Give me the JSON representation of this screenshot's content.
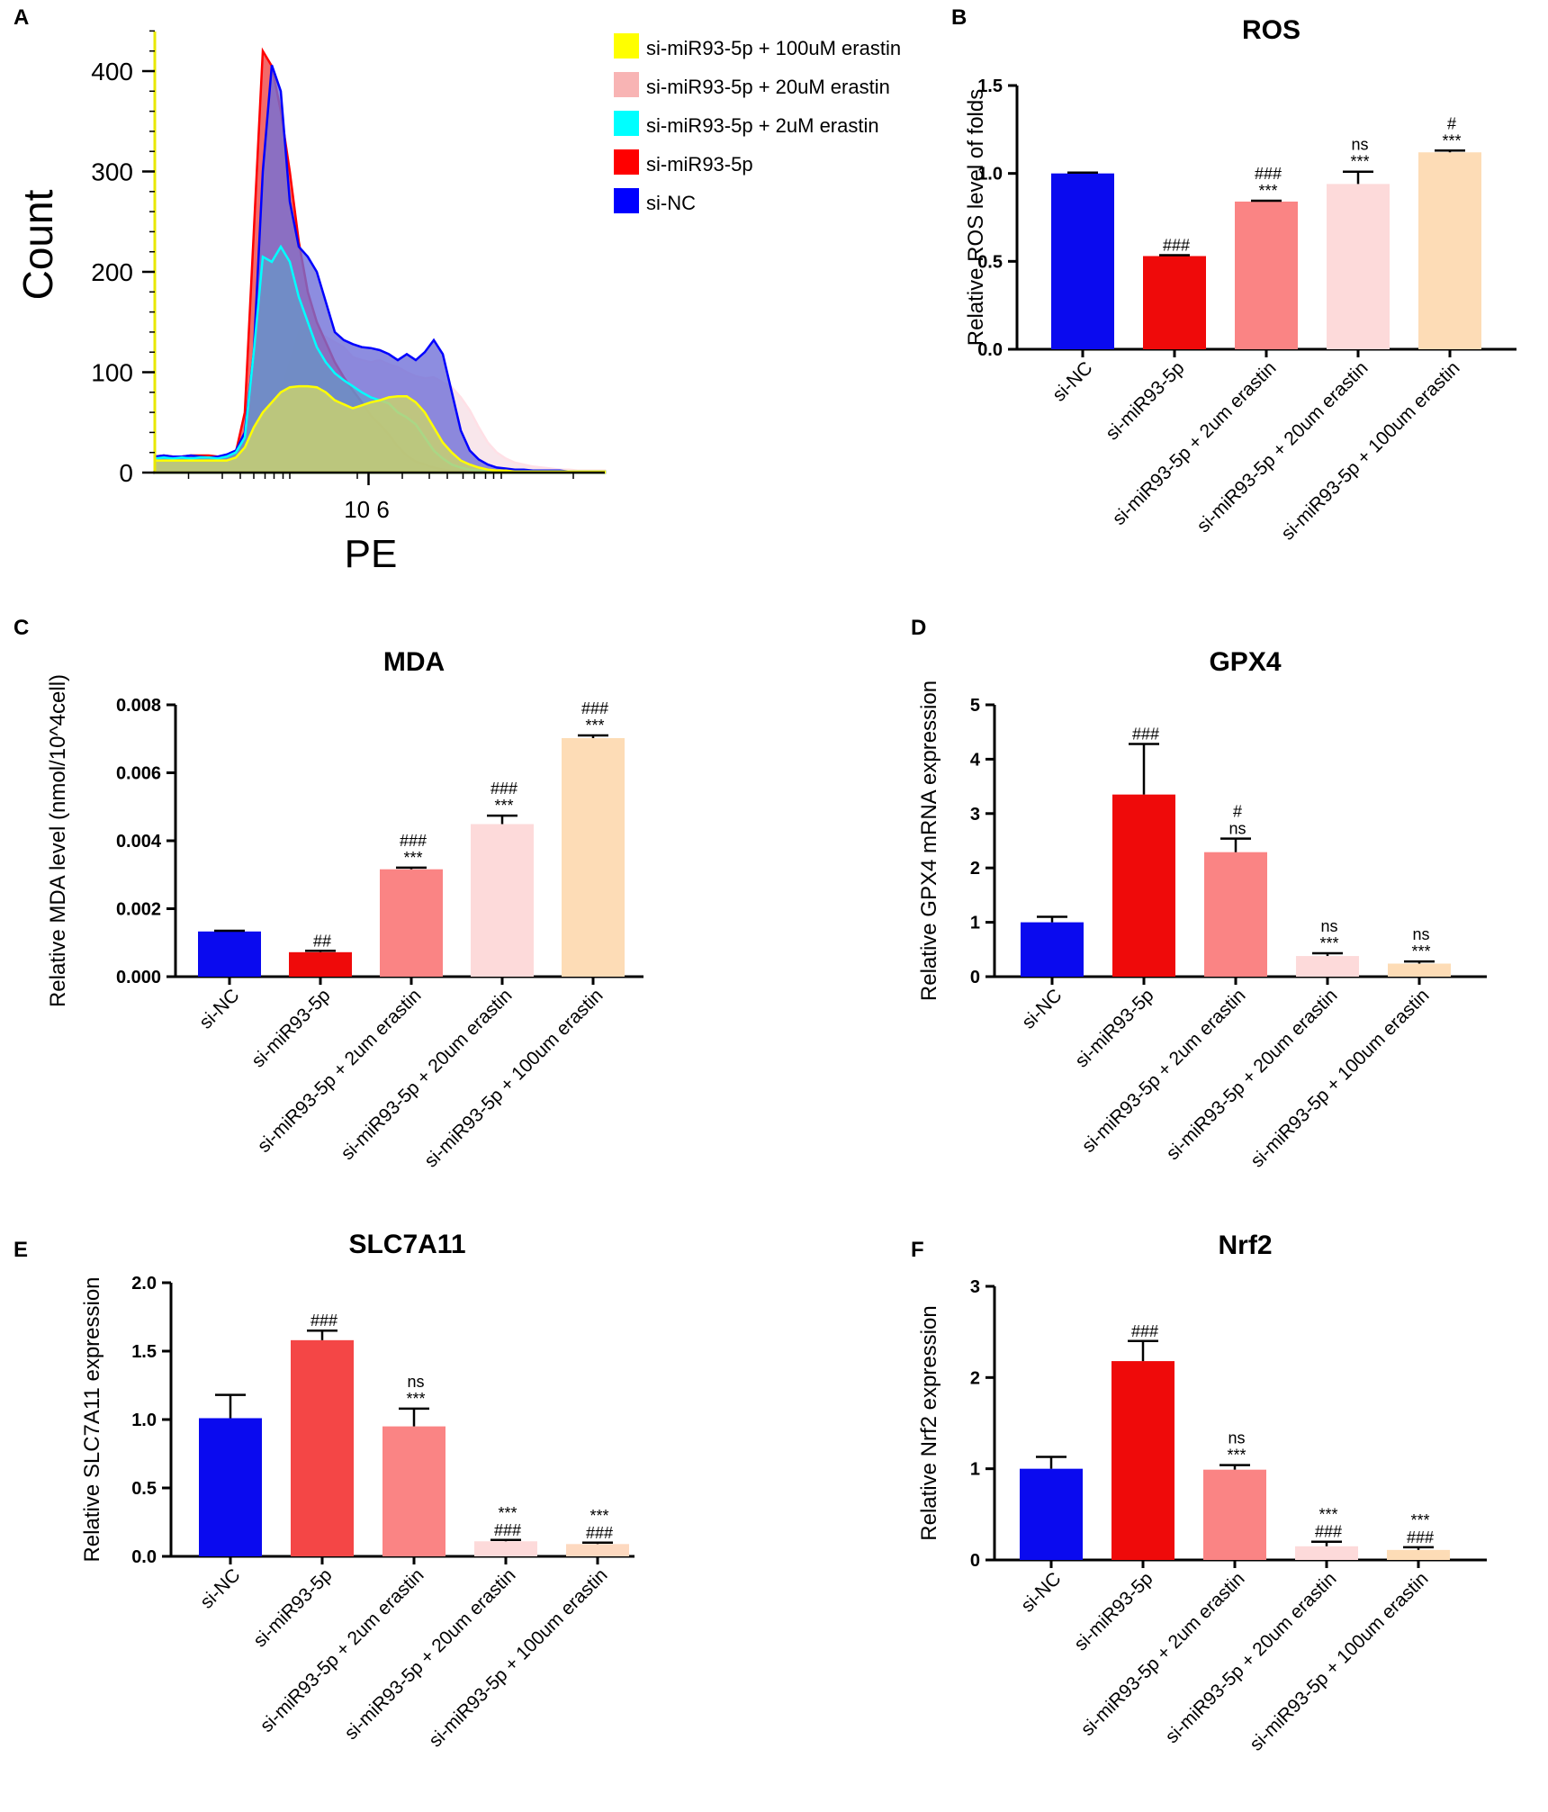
{
  "colors": {
    "siNC": "#0a0aef",
    "si93": "#ef0a0a",
    "s2": "#fa8484",
    "s20": "#fddada",
    "s100": "#fddcb6",
    "s100_slc": "#fdd9c0",
    "si93_slc": "#f44646",
    "flow_si93": "#f04040",
    "flow_siNC": "#3a3ad8",
    "flow_cyan": "#00ffff",
    "flow_pink": "#f8c8c8",
    "flow_yellow": "#ffff00"
  },
  "chart_data": [
    {
      "id": "A",
      "panel_label": "A",
      "type": "histogram",
      "title": "",
      "xlabel": "PE",
      "ylabel": "Count",
      "x_tick_label": "10 6",
      "yticks": [
        "0",
        "100",
        "200",
        "300",
        "400"
      ],
      "ylim": [
        0,
        450
      ],
      "legend": [
        {
          "label": "si-miR93-5p + 100uM erastin",
          "color": "#ffff00"
        },
        {
          "label": "si-miR93-5p + 20uM erastin",
          "color": "#f8b4b4"
        },
        {
          "label": "si-miR93-5p + 2uM erastin",
          "color": "#00ffff"
        },
        {
          "label": "si-miR93-5p",
          "color": "#ff0000"
        },
        {
          "label": "si-NC",
          "color": "#0000ff"
        }
      ],
      "x": [
        0,
        2,
        4,
        6,
        8,
        10,
        12,
        14,
        16,
        18,
        20,
        22,
        24,
        26,
        28,
        30,
        32,
        34,
        36,
        38,
        40,
        42,
        44,
        46,
        48,
        50,
        52,
        54,
        56,
        58,
        60,
        62,
        64,
        66,
        68,
        70,
        72,
        74,
        76,
        78,
        80,
        82,
        84,
        86,
        88,
        90,
        92,
        94,
        96,
        98,
        100
      ],
      "series": [
        {
          "name": "si-NC",
          "values": [
            16,
            17,
            16,
            16,
            17,
            16,
            15,
            16,
            18,
            22,
            40,
            120,
            300,
            406,
            380,
            270,
            225,
            215,
            200,
            170,
            140,
            132,
            128,
            125,
            124,
            122,
            118,
            112,
            118,
            112,
            120,
            132,
            118,
            80,
            42,
            22,
            13,
            8,
            5,
            4,
            3,
            3,
            2,
            2,
            2,
            2,
            1,
            1,
            1,
            1,
            1
          ]
        },
        {
          "name": "si-miR93-5p",
          "values": [
            16,
            17,
            16,
            16,
            17,
            17,
            17,
            16,
            16,
            20,
            60,
            240,
            420,
            405,
            360,
            300,
            230,
            180,
            150,
            130,
            110,
            95,
            82,
            70,
            57,
            48,
            38,
            26,
            17,
            11,
            8,
            5,
            3,
            2,
            2,
            1,
            1,
            1,
            1,
            1,
            1,
            1,
            1,
            1,
            1,
            1,
            1,
            1,
            1,
            1,
            1
          ]
        },
        {
          "name": "si-miR93-5p + 2uM erastin",
          "values": [
            14,
            15,
            14,
            15,
            14,
            15,
            15,
            14,
            16,
            20,
            35,
            120,
            215,
            210,
            225,
            210,
            175,
            150,
            125,
            110,
            99,
            92,
            86,
            80,
            75,
            72,
            69,
            60,
            55,
            48,
            35,
            22,
            14,
            8,
            5,
            3,
            2,
            2,
            1,
            1,
            1,
            1,
            1,
            1,
            1,
            1,
            1,
            1,
            1,
            1,
            1
          ]
        },
        {
          "name": "si-miR93-5p + 20uM erastin",
          "values": [
            13,
            12,
            13,
            12,
            13,
            12,
            12,
            13,
            12,
            14,
            20,
            30,
            42,
            58,
            80,
            110,
            140,
            146,
            140,
            135,
            130,
            125,
            115,
            112,
            110,
            112,
            108,
            105,
            100,
            96,
            94,
            95,
            90,
            85,
            75,
            62,
            45,
            30,
            20,
            14,
            10,
            8,
            6,
            5,
            4,
            3,
            3,
            2,
            2,
            2,
            2
          ]
        },
        {
          "name": "si-miR93-5p + 100uM erastin",
          "values": [
            12,
            12,
            12,
            12,
            12,
            12,
            12,
            12,
            12,
            15,
            25,
            45,
            60,
            70,
            80,
            85,
            86,
            86,
            85,
            80,
            72,
            68,
            64,
            67,
            70,
            72,
            75,
            76,
            76,
            70,
            60,
            45,
            30,
            20,
            12,
            8,
            5,
            3,
            2,
            2,
            1,
            1,
            1,
            1,
            1,
            1,
            1,
            1,
            1,
            1,
            1
          ]
        }
      ]
    },
    {
      "id": "B",
      "panel_label": "B",
      "type": "bar",
      "title": "ROS",
      "ylabel": "Relative ROS level of folds",
      "xlabel": "",
      "ylim": [
        0,
        1.5
      ],
      "yticks": [
        "0.0",
        "0.5",
        "1.0",
        "1.5"
      ],
      "categories": [
        "si-NC",
        "si-miR93-5p",
        "si-miR93-5p + 2um erastin",
        "si-miR93-5p + 20um erastin",
        "si-miR93-5p + 100um erastin"
      ],
      "values": [
        1.0,
        0.53,
        0.84,
        0.94,
        1.12
      ],
      "errors": [
        0.005,
        0.005,
        0.005,
        0.07,
        0.01
      ],
      "annotations": [
        [],
        [
          "###"
        ],
        [
          "###",
          "***"
        ],
        [
          "ns",
          "***"
        ],
        [
          "#",
          "***"
        ]
      ]
    },
    {
      "id": "C",
      "panel_label": "C",
      "type": "bar",
      "title": "MDA",
      "ylabel": "Relative MDA level (nmol/10^4cell)",
      "xlabel": "",
      "ylim": [
        0,
        0.008
      ],
      "yticks": [
        "0.000",
        "0.002",
        "0.004",
        "0.006",
        "0.008"
      ],
      "categories": [
        "si-NC",
        "si-miR93-5p",
        "si-miR93-5p + 2um erastin",
        "si-miR93-5p + 20um erastin",
        "si-miR93-5p + 100um erastin"
      ],
      "values": [
        0.00133,
        0.00072,
        0.00316,
        0.00449,
        0.00702
      ],
      "errors": [
        2e-05,
        4e-05,
        5e-05,
        0.00025,
        8e-05
      ],
      "annotations": [
        [],
        [
          "##"
        ],
        [
          "###",
          "***"
        ],
        [
          "###",
          "***"
        ],
        [
          "###",
          "***"
        ]
      ]
    },
    {
      "id": "D",
      "panel_label": "D",
      "type": "bar",
      "title": "GPX4",
      "ylabel": "Relative GPX4 mRNA expression",
      "xlabel": "",
      "ylim": [
        0,
        5
      ],
      "yticks": [
        "0",
        "1",
        "2",
        "3",
        "4",
        "5"
      ],
      "categories": [
        "si-NC",
        "si-miR93-5p",
        "si-miR93-5p + 2um erastin",
        "si-miR93-5p + 20um erastin",
        "si-miR93-5p + 100um erastin"
      ],
      "values": [
        1.0,
        3.35,
        2.29,
        0.38,
        0.24
      ],
      "errors": [
        0.1,
        0.93,
        0.25,
        0.05,
        0.04
      ],
      "annotations": [
        [],
        [
          "###"
        ],
        [
          "#",
          "ns"
        ],
        [
          "ns",
          "***"
        ],
        [
          "ns",
          "***"
        ]
      ]
    },
    {
      "id": "E",
      "panel_label": "E",
      "type": "bar",
      "title": "SLC7A11",
      "ylabel": "Relative SLC7A11 expression",
      "xlabel": "",
      "ylim": [
        0,
        2.0
      ],
      "yticks": [
        "0.0",
        "0.5",
        "1.0",
        "1.5",
        "2.0"
      ],
      "categories": [
        "si-NC",
        "si-miR93-5p",
        "si-miR93-5p + 2um erastin",
        "si-miR93-5p + 20um erastin",
        "si-miR93-5p + 100um erastin"
      ],
      "values": [
        1.01,
        1.58,
        0.95,
        0.11,
        0.09
      ],
      "errors": [
        0.17,
        0.07,
        0.13,
        0.01,
        0.01
      ],
      "annotations": [
        [],
        [
          "###"
        ],
        [
          "ns",
          "***"
        ],
        [
          "***",
          "###"
        ],
        [
          "***",
          "###"
        ]
      ]
    },
    {
      "id": "F",
      "panel_label": "F",
      "type": "bar",
      "title": "Nrf2",
      "ylabel": "Relative Nrf2 expression",
      "xlabel": "",
      "ylim": [
        0,
        3
      ],
      "yticks": [
        "0",
        "1",
        "2",
        "3"
      ],
      "categories": [
        "si-NC",
        "si-miR93-5p",
        "si-miR93-5p + 2um erastin",
        "si-miR93-5p + 20um erastin",
        "si-miR93-5p + 100um erastin"
      ],
      "values": [
        1.0,
        2.18,
        0.99,
        0.15,
        0.11
      ],
      "errors": [
        0.13,
        0.22,
        0.05,
        0.05,
        0.03
      ],
      "annotations": [
        [],
        [
          "###"
        ],
        [
          "ns",
          "***"
        ],
        [
          "***",
          "###"
        ],
        [
          "***",
          "###"
        ]
      ]
    }
  ]
}
